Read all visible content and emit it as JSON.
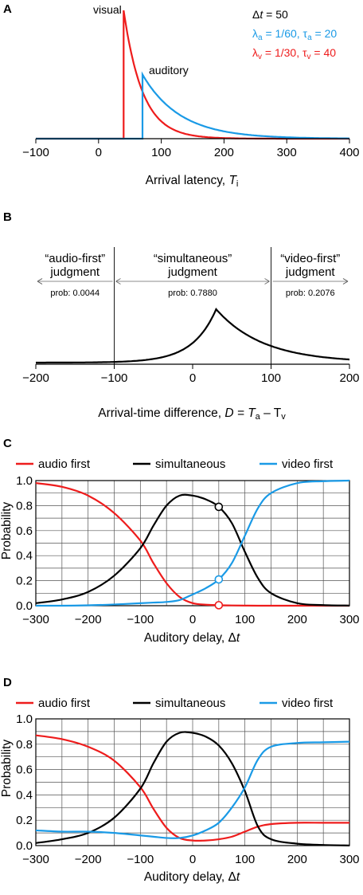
{
  "colors": {
    "red": "#ee1c1c",
    "blue": "#1a9ae6",
    "black": "#000000",
    "grid": "#555555"
  },
  "chart_data": [
    {
      "panel": "A",
      "type": "line",
      "xlabel_main": "Arrival latency, ",
      "xlabel_var": "T",
      "xlabel_sub": "i",
      "xlim": [
        -100,
        400
      ],
      "x_ticks": [
        "−100",
        "0",
        "100",
        "200",
        "300",
        "400"
      ],
      "x_tick_values": [
        -100,
        0,
        100,
        200,
        300,
        400
      ],
      "params": {
        "delta_t": 50,
        "lambda_a": 0.016667,
        "tau_a": 20,
        "lambda_v": 0.033333,
        "tau_v": 40
      },
      "annotations": {
        "delta_line": {
          "sym": "Δ",
          "var": "t",
          "rest": " = 50"
        },
        "audio_line": {
          "l": "λ",
          "sub": "a",
          "mid": " = 1/60, ",
          "t": "τ",
          "sub2": "a",
          "end": " = 20"
        },
        "visual_line": {
          "l": "λ",
          "sub": "v",
          "mid": " = 1/30, ",
          "t": "τ",
          "sub2": "v",
          "end": " = 40"
        }
      },
      "series": [
        {
          "name": "visual",
          "color": "#ee1c1c",
          "onset": 40,
          "rate": 0.033333
        },
        {
          "name": "auditory",
          "color": "#1a9ae6",
          "onset": 70,
          "rate": 0.016667
        }
      ]
    },
    {
      "panel": "B",
      "type": "line",
      "xlabel_main": "Arrival-time difference, ",
      "xlabel_eq": "D = T",
      "xlabel_a": "a",
      "xlabel_minus": " – T",
      "xlabel_v": "v",
      "xlim": [
        -200,
        200
      ],
      "x_ticks": [
        "−200",
        "−100",
        "0",
        "100",
        "200"
      ],
      "x_tick_values": [
        -200,
        -100,
        0,
        100,
        200
      ],
      "boundaries": [
        -100,
        100
      ],
      "peak_x": 30,
      "regions": [
        {
          "label1": "“audio-first”",
          "label2": "judgment",
          "prob": "prob: 0.0044"
        },
        {
          "label1": "“simultaneous”",
          "label2": "judgment",
          "prob": "prob: 0.7880"
        },
        {
          "label1": "“video-first”",
          "label2": "judgment",
          "prob": "prob: 0.2076"
        }
      ]
    },
    {
      "panel": "C",
      "type": "line",
      "ylabel": "Probability",
      "xlabel_main": "Auditory delay, ",
      "xlabel_sym": "Δ",
      "xlabel_var": "t",
      "xlim": [
        -300,
        300
      ],
      "ylim": [
        0,
        1
      ],
      "x_ticks": [
        "−300",
        "−200",
        "−100",
        "0",
        "100",
        "200",
        "300"
      ],
      "x_tick_values": [
        -300,
        -200,
        -100,
        0,
        100,
        200,
        300
      ],
      "y_ticks": [
        "0.0",
        "0.2",
        "0.4",
        "0.6",
        "0.8",
        "1.0"
      ],
      "y_tick_values": [
        0,
        0.2,
        0.4,
        0.6,
        0.8,
        1.0
      ],
      "grid": true,
      "legend": [
        "audio first",
        "simultaneous",
        "video first"
      ],
      "x": [
        -300,
        -250,
        -200,
        -150,
        -100,
        -75,
        -50,
        -25,
        0,
        25,
        50,
        75,
        100,
        125,
        150,
        200,
        250,
        300
      ],
      "series": [
        {
          "name": "audio first",
          "color": "#ee1c1c",
          "values": [
            0.98,
            0.95,
            0.88,
            0.74,
            0.52,
            0.34,
            0.18,
            0.07,
            0.02,
            0.008,
            0.004,
            0.002,
            0.001,
            0.0,
            0.0,
            0.0,
            0.0,
            0.0
          ]
        },
        {
          "name": "simultaneous",
          "color": "#000000",
          "values": [
            0.02,
            0.05,
            0.11,
            0.24,
            0.46,
            0.64,
            0.8,
            0.88,
            0.88,
            0.85,
            0.79,
            0.66,
            0.43,
            0.22,
            0.1,
            0.02,
            0.005,
            0.001
          ]
        },
        {
          "name": "video first",
          "color": "#1a9ae6",
          "values": [
            0.0,
            0.0,
            0.003,
            0.01,
            0.02,
            0.025,
            0.03,
            0.045,
            0.09,
            0.14,
            0.21,
            0.34,
            0.56,
            0.78,
            0.9,
            0.98,
            0.995,
            1.0
          ]
        }
      ],
      "markers_x": 50
    },
    {
      "panel": "D",
      "type": "line",
      "ylabel": "Probability",
      "xlabel_main": "Auditory delay, ",
      "xlabel_sym": "Δ",
      "xlabel_var": "t",
      "xlim": [
        -300,
        300
      ],
      "ylim": [
        0,
        1
      ],
      "x_ticks": [
        "−300",
        "−200",
        "−100",
        "0",
        "100",
        "200",
        "300"
      ],
      "x_tick_values": [
        -300,
        -200,
        -100,
        0,
        100,
        200,
        300
      ],
      "y_ticks": [
        "0.0",
        "0.2",
        "0.4",
        "0.6",
        "0.8",
        "1.0"
      ],
      "y_tick_values": [
        0,
        0.2,
        0.4,
        0.6,
        0.8,
        1.0
      ],
      "grid": true,
      "legend": [
        "audio first",
        "simultaneous",
        "video first"
      ],
      "x": [
        -300,
        -250,
        -200,
        -150,
        -100,
        -75,
        -50,
        -25,
        0,
        25,
        50,
        75,
        100,
        125,
        150,
        200,
        250,
        300
      ],
      "series": [
        {
          "name": "audio first",
          "color": "#ee1c1c",
          "values": [
            0.87,
            0.84,
            0.78,
            0.67,
            0.46,
            0.29,
            0.14,
            0.06,
            0.04,
            0.04,
            0.05,
            0.07,
            0.11,
            0.15,
            0.17,
            0.18,
            0.18,
            0.18
          ]
        },
        {
          "name": "simultaneous",
          "color": "#000000",
          "values": [
            0.02,
            0.05,
            0.1,
            0.22,
            0.45,
            0.65,
            0.82,
            0.89,
            0.89,
            0.86,
            0.79,
            0.65,
            0.43,
            0.15,
            0.05,
            0.015,
            0.005,
            0.001
          ]
        },
        {
          "name": "video first",
          "color": "#1a9ae6",
          "values": [
            0.12,
            0.11,
            0.11,
            0.1,
            0.08,
            0.07,
            0.06,
            0.06,
            0.08,
            0.12,
            0.18,
            0.3,
            0.46,
            0.68,
            0.78,
            0.81,
            0.815,
            0.82
          ]
        }
      ]
    }
  ]
}
